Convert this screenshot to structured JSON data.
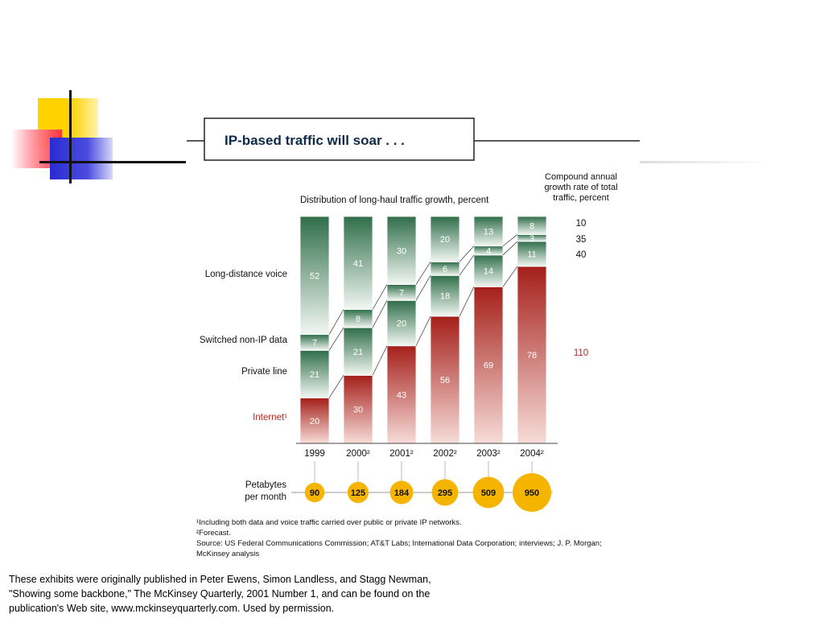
{
  "chart_data": {
    "type": "bar",
    "stacked": true,
    "title": "IP-based traffic will soar . . .",
    "subtitle": "Distribution of long-haul traffic growth, percent",
    "categories": [
      "1999",
      "2000²",
      "2001²",
      "2002²",
      "2003²",
      "2004²"
    ],
    "series": [
      {
        "name": "Internet¹",
        "values": [
          20,
          30,
          43,
          56,
          69,
          78
        ],
        "color": "#b42a24",
        "cagr": "110"
      },
      {
        "name": "Private line",
        "values": [
          21,
          21,
          20,
          18,
          14,
          11
        ],
        "color": "#3f7a55",
        "cagr": "40"
      },
      {
        "name": "Switched non-IP data",
        "values": [
          7,
          8,
          7,
          6,
          4,
          3
        ],
        "color": "#3f7a55",
        "cagr": "35"
      },
      {
        "name": "Long-distance voice",
        "values": [
          52,
          41,
          30,
          20,
          13,
          8
        ],
        "color": "#3f7a55",
        "cagr": "10"
      }
    ],
    "cagr_header": [
      "Compound annual",
      "growth rate of total",
      "traffic, percent"
    ],
    "petabytes_label": [
      "Petabytes",
      "per month"
    ],
    "petabytes": [
      "90",
      "125",
      "184",
      "295",
      "509",
      "950"
    ],
    "footnotes": [
      "¹Including both data and voice traffic carried over public or private IP networks.",
      "²Forecast.",
      "Source: US Federal Communications Commission; AT&T Labs; International Data Corporation; interviews; J. P. Morgan;",
      "McKinsey analysis"
    ],
    "colors": {
      "internet": "#b42a24",
      "other": "#3f7a55",
      "bubble": "#f5b400"
    }
  },
  "footer": {
    "caption": "These exhibits were originally published in Peter Ewens, Simon Landless, and Stagg Newman, \"Showing some backbone,\" The McKinsey Quarterly, 2001 Number 1, and can be found on the publication's Web site, www.mckinseyquarterly.com. Used by permission."
  }
}
